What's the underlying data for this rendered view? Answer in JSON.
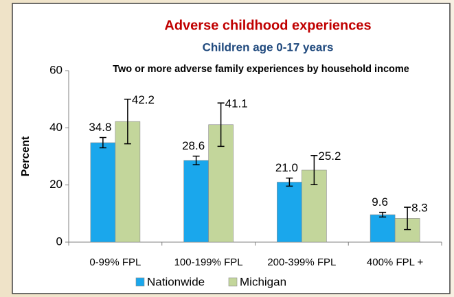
{
  "chart_data": {
    "type": "bar",
    "title": "Adverse childhood experiences",
    "subtitle": "Children age 0-17 years",
    "note": "Two or more adverse family experiences by household income",
    "y_label": "Percent",
    "categories": [
      "0-99% FPL",
      "100-199% FPL",
      "200-399% FPL",
      "400% FPL +"
    ],
    "series": [
      {
        "name": "Nationwide",
        "color": "#1aa7ec",
        "values": [
          34.8,
          28.6,
          21.0,
          9.6
        ],
        "value_labels": [
          "34.8",
          "28.6",
          "21.0",
          "9.6"
        ],
        "errors": [
          1.8,
          1.5,
          1.4,
          0.8
        ]
      },
      {
        "name": "Michigan",
        "color": "#c3d69b",
        "values": [
          42.2,
          41.1,
          25.2,
          8.3
        ],
        "value_labels": [
          "42.2",
          "41.1",
          "25.2",
          "8.3"
        ],
        "errors": [
          7.8,
          7.6,
          5.1,
          3.9
        ]
      }
    ],
    "ylim": [
      0,
      60
    ],
    "yticks": [
      0,
      20,
      40,
      60
    ],
    "grid": false,
    "legend": "bottom"
  }
}
